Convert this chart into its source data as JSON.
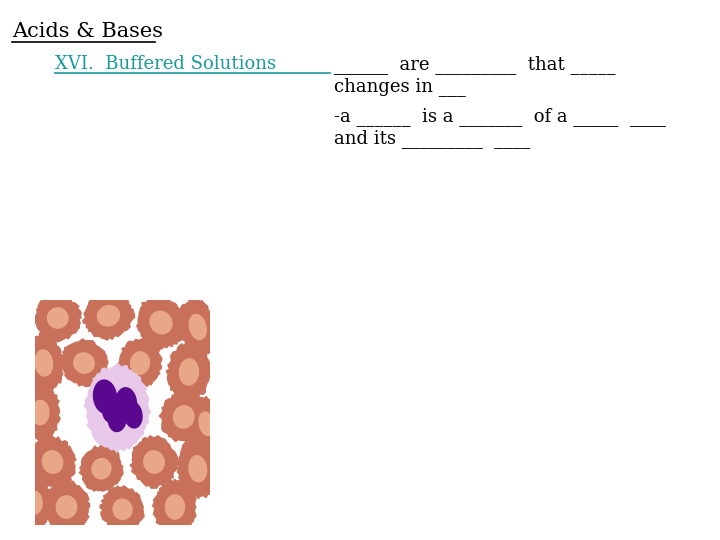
{
  "title": "Acids & Bases",
  "subtitle": "XVI.  Buffered Solutions",
  "subtitle_color": "#1a9a9a",
  "title_color": "#000000",
  "background_color": "#ffffff",
  "line1_pre": "-",
  "line1": "______  are _________  that _____",
  "line2": "changes in ___",
  "line3": "-a ______  is a _______  of a _____  ____",
  "line4": "and its _________  ____",
  "font_size": 13,
  "title_font_size": 15,
  "bg_color": "#f5cfc0",
  "rbc_outer": "#c8705a",
  "rbc_inner": "#e8a888",
  "wbc_fill": "#e8c8e8",
  "nucleus_color": "#5a0890"
}
